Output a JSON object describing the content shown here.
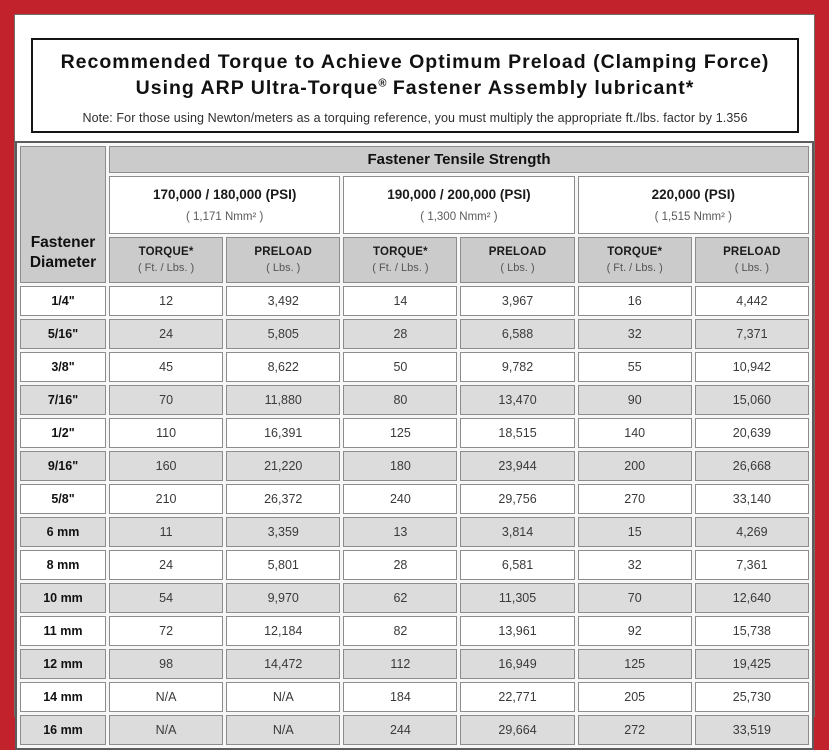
{
  "colors": {
    "frame_red": "#c2222b",
    "header_gray": "#cbcbcb",
    "row_alt_gray": "#dcdcdc"
  },
  "title": {
    "line1": "Recommended Torque to Achieve Optimum Preload (Clamping Force)",
    "line2_pre": "Using ARP Ultra-Torque",
    "line2_sup": "®",
    "line2_post": " Fastener Assembly lubricant*",
    "note": "Note: For those using Newton/meters as a torquing reference, you must multiply the appropriate ft./lbs. factor by 1.356"
  },
  "table": {
    "tensile_header": "Fastener Tensile Strength",
    "diameter_header": "Fastener\nDiameter",
    "groups": [
      {
        "psi": "170,000 / 180,000 (PSI)",
        "nmm": "( 1,171 Nmm² )"
      },
      {
        "psi": "190,000 / 200,000 (PSI)",
        "nmm": "( 1,300 Nmm² )"
      },
      {
        "psi": "220,000 (PSI)",
        "nmm": "( 1,515 Nmm² )"
      }
    ],
    "subheads": [
      {
        "name": "TORQUE*",
        "unit": "( Ft. / Lbs. )"
      },
      {
        "name": "PRELOAD",
        "unit": "( Lbs. )"
      },
      {
        "name": "TORQUE*",
        "unit": "( Ft. / Lbs. )"
      },
      {
        "name": "PRELOAD",
        "unit": "( Lbs. )"
      },
      {
        "name": "TORQUE*",
        "unit": "( Ft. / Lbs. )"
      },
      {
        "name": "PRELOAD",
        "unit": "( Lbs. )"
      }
    ],
    "rows": [
      {
        "dia": "1/4\"",
        "vals": [
          "12",
          "3,492",
          "14",
          "3,967",
          "16",
          "4,442"
        ]
      },
      {
        "dia": "5/16\"",
        "vals": [
          "24",
          "5,805",
          "28",
          "6,588",
          "32",
          "7,371"
        ]
      },
      {
        "dia": "3/8\"",
        "vals": [
          "45",
          "8,622",
          "50",
          "9,782",
          "55",
          "10,942"
        ]
      },
      {
        "dia": "7/16\"",
        "vals": [
          "70",
          "11,880",
          "80",
          "13,470",
          "90",
          "15,060"
        ]
      },
      {
        "dia": "1/2\"",
        "vals": [
          "110",
          "16,391",
          "125",
          "18,515",
          "140",
          "20,639"
        ]
      },
      {
        "dia": "9/16\"",
        "vals": [
          "160",
          "21,220",
          "180",
          "23,944",
          "200",
          "26,668"
        ]
      },
      {
        "dia": "5/8\"",
        "vals": [
          "210",
          "26,372",
          "240",
          "29,756",
          "270",
          "33,140"
        ]
      },
      {
        "dia": "6 mm",
        "vals": [
          "11",
          "3,359",
          "13",
          "3,814",
          "15",
          "4,269"
        ]
      },
      {
        "dia": "8 mm",
        "vals": [
          "24",
          "5,801",
          "28",
          "6,581",
          "32",
          "7,361"
        ]
      },
      {
        "dia": "10 mm",
        "vals": [
          "54",
          "9,970",
          "62",
          "11,305",
          "70",
          "12,640"
        ]
      },
      {
        "dia": "11 mm",
        "vals": [
          "72",
          "12,184",
          "82",
          "13,961",
          "92",
          "15,738"
        ]
      },
      {
        "dia": "12 mm",
        "vals": [
          "98",
          "14,472",
          "112",
          "16,949",
          "125",
          "19,425"
        ]
      },
      {
        "dia": "14 mm",
        "vals": [
          "N/A",
          "N/A",
          "184",
          "22,771",
          "205",
          "25,730"
        ]
      },
      {
        "dia": "16 mm",
        "vals": [
          "N/A",
          "N/A",
          "244",
          "29,664",
          "272",
          "33,519"
        ]
      }
    ]
  }
}
